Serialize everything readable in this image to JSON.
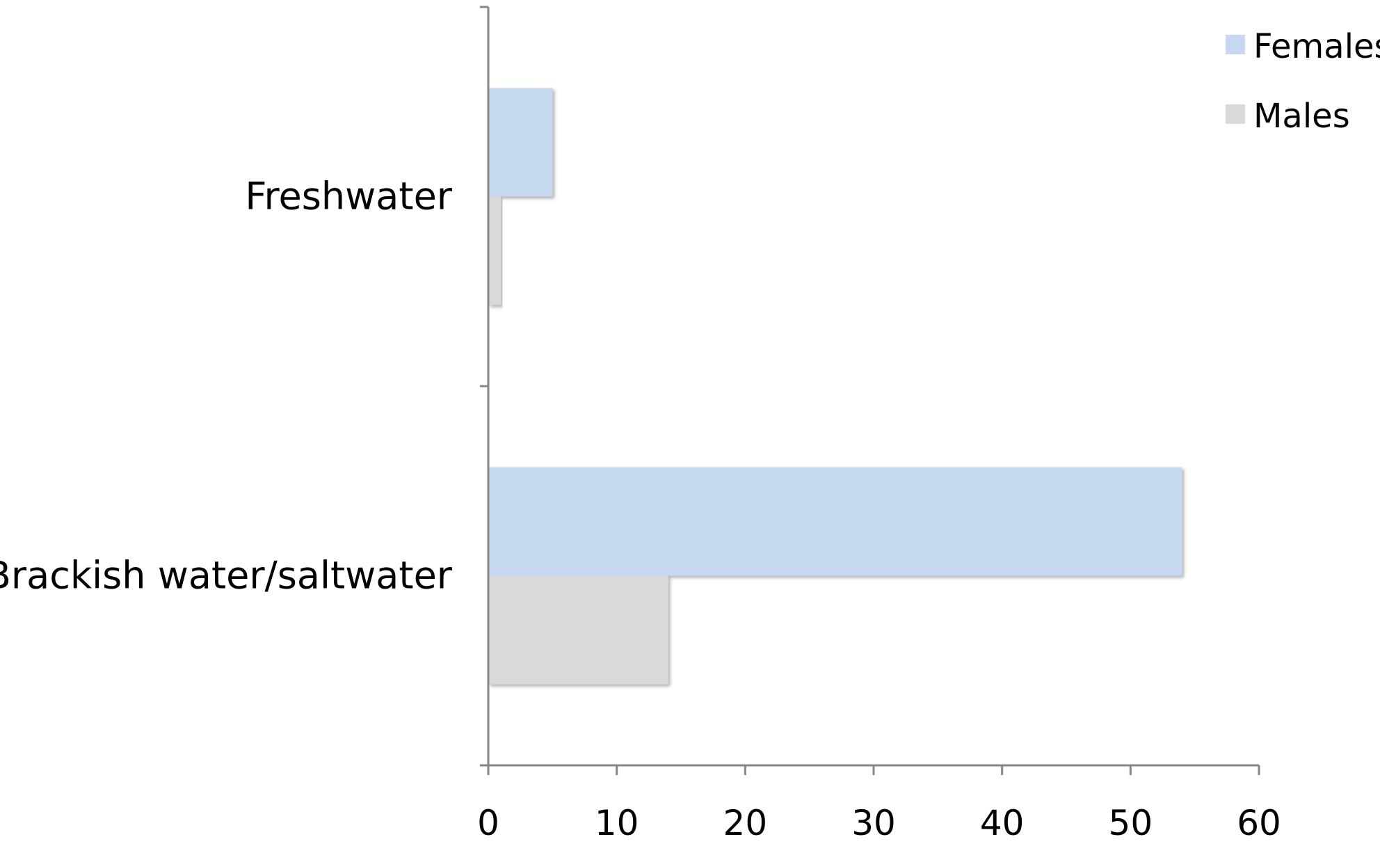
{
  "chart_data": {
    "type": "bar",
    "orientation": "horizontal",
    "categories": [
      "Freshwater",
      "Brackish water/saltwater"
    ],
    "series": [
      {
        "name": "Females",
        "values": [
          5,
          54
        ],
        "color": "#c6d9f1"
      },
      {
        "name": "Males",
        "values": [
          1,
          14
        ],
        "color": "#d9d9d9"
      }
    ],
    "xlim": [
      0,
      60
    ],
    "xticks": [
      "0",
      "10",
      "20",
      "30",
      "40",
      "50",
      "60"
    ],
    "title": "",
    "xlabel": "",
    "ylabel": "",
    "grid": false,
    "legend_position": "top-right",
    "axis_color": "#868686"
  }
}
